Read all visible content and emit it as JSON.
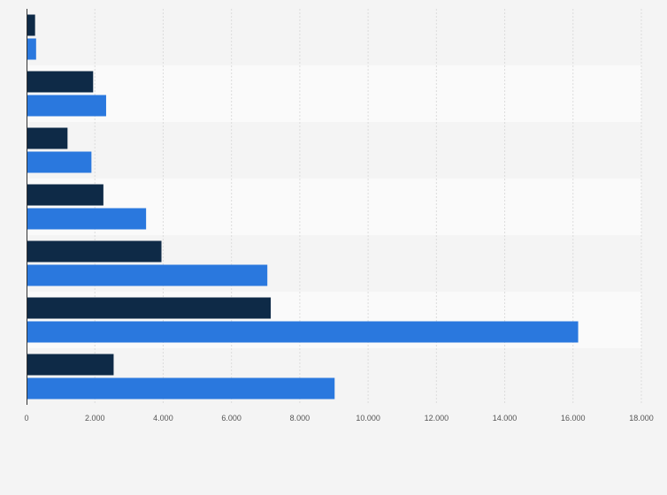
{
  "chart_data": {
    "type": "bar",
    "orientation": "horizontal",
    "title": "",
    "xlabel": "",
    "ylabel": "",
    "categories": [
      "",
      "",
      "",
      "",
      "",
      "",
      ""
    ],
    "series": [
      {
        "values": [
          250,
          1950,
          1200,
          2250,
          3950,
          7150,
          2550
        ]
      },
      {
        "values": [
          280,
          2330,
          1900,
          3500,
          7050,
          16150,
          9020
        ]
      }
    ],
    "xlim": [
      0,
      18000
    ],
    "xticks": [
      0,
      2000,
      4000,
      6000,
      8000,
      10000,
      12000,
      14000,
      16000,
      18000
    ],
    "xtick_labels": [
      "0",
      "2.000",
      "4.000",
      "6.000",
      "8.000",
      "10.000",
      "12.000",
      "14.000",
      "16.000",
      "18.000"
    ],
    "grid": "vertical",
    "legend": "none",
    "colors": {
      "series": [
        "#0e2a47",
        "#2a78de"
      ],
      "band_light": "#f4f4f4",
      "band_white": "#fafafa",
      "grid": "#dcdcdc",
      "axis": "#333333",
      "page_bg": "#f4f4f4"
    }
  }
}
